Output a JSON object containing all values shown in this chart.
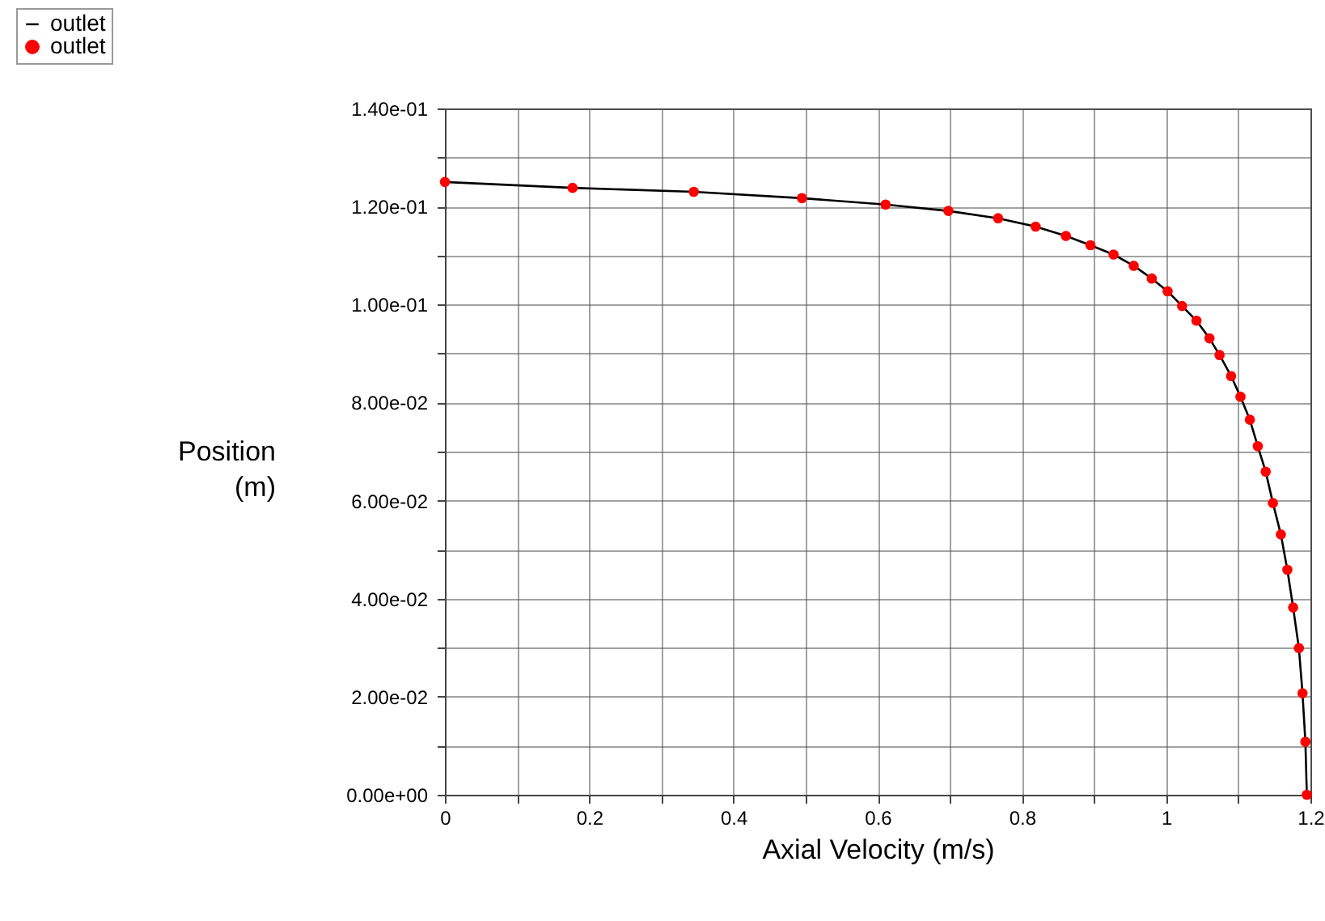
{
  "chart_data": {
    "type": "line",
    "xlabel": "Axial Velocity (m/s)",
    "ylabel": "Position (m)",
    "x": [
      0,
      0.177,
      0.345,
      0.495,
      0.611,
      0.698,
      0.767,
      0.819,
      0.861,
      0.895,
      0.927,
      0.955,
      0.98,
      1.002,
      1.022,
      1.042,
      1.06,
      1.074,
      1.09,
      1.103,
      1.116,
      1.127,
      1.138,
      1.148,
      1.159,
      1.168,
      1.176,
      1.184,
      1.189,
      1.193,
      1.195
    ],
    "series": [
      {
        "name": "outlet",
        "color": "#000000",
        "values": [
          0.125,
          0.1238,
          0.123,
          0.1217,
          0.1204,
          0.1191,
          0.1176,
          0.1159,
          0.114,
          0.1121,
          0.1102,
          0.1079,
          0.1053,
          0.1027,
          0.0997,
          0.0967,
          0.0931,
          0.0897,
          0.0854,
          0.0812,
          0.0765,
          0.0711,
          0.0659,
          0.0595,
          0.0531,
          0.0459,
          0.0382,
          0.0299,
          0.0207,
          0.0108,
          0
        ]
      },
      {
        "name": "outlet",
        "type": "scatter",
        "color": "#ff0000",
        "marker": "circle",
        "values": [
          0.125,
          0.1238,
          0.123,
          0.1217,
          0.1204,
          0.1191,
          0.1176,
          0.1159,
          0.114,
          0.1121,
          0.1102,
          0.1079,
          0.1053,
          0.1027,
          0.0997,
          0.0967,
          0.0931,
          0.0897,
          0.0854,
          0.0812,
          0.0765,
          0.0711,
          0.0659,
          0.0595,
          0.0531,
          0.0459,
          0.0382,
          0.0299,
          0.0207,
          0.0108,
          0
        ]
      }
    ],
    "xlim": [
      0,
      1.2
    ],
    "xticks": [
      0,
      {
        "value": 0.1,
        "label": null
      },
      0.2,
      {
        "value": 0.3,
        "label": null
      },
      0.4,
      {
        "value": 0.5,
        "label": null
      },
      0.6,
      {
        "value": 0.7,
        "label": null
      },
      0.8,
      {
        "value": 0.9,
        "label": null
      },
      1,
      {
        "value": 1.1,
        "label": null
      },
      1.2
    ],
    "ylim": [
      0,
      0.14
    ],
    "yticks": [
      {
        "value": 0,
        "label": "0.00e+00"
      },
      {
        "value": 0.01,
        "label": null
      },
      {
        "value": 0.02,
        "label": "2.00e-02"
      },
      {
        "value": 0.03,
        "label": null
      },
      {
        "value": 0.04,
        "label": "4.00e-02"
      },
      {
        "value": 0.05,
        "label": null
      },
      {
        "value": 0.06,
        "label": "6.00e-02"
      },
      {
        "value": 0.07,
        "label": null
      },
      {
        "value": 0.08,
        "label": "8.00e-02"
      },
      {
        "value": 0.09,
        "label": null
      },
      {
        "value": 0.1,
        "label": "1.00e-01"
      },
      {
        "value": 0.11,
        "label": null
      },
      {
        "value": 0.12,
        "label": "1.20e-01"
      },
      {
        "value": 0.13,
        "label": null
      },
      {
        "value": 0.14,
        "label": "1.40e-01"
      }
    ],
    "grid": true,
    "legend": "top left"
  }
}
